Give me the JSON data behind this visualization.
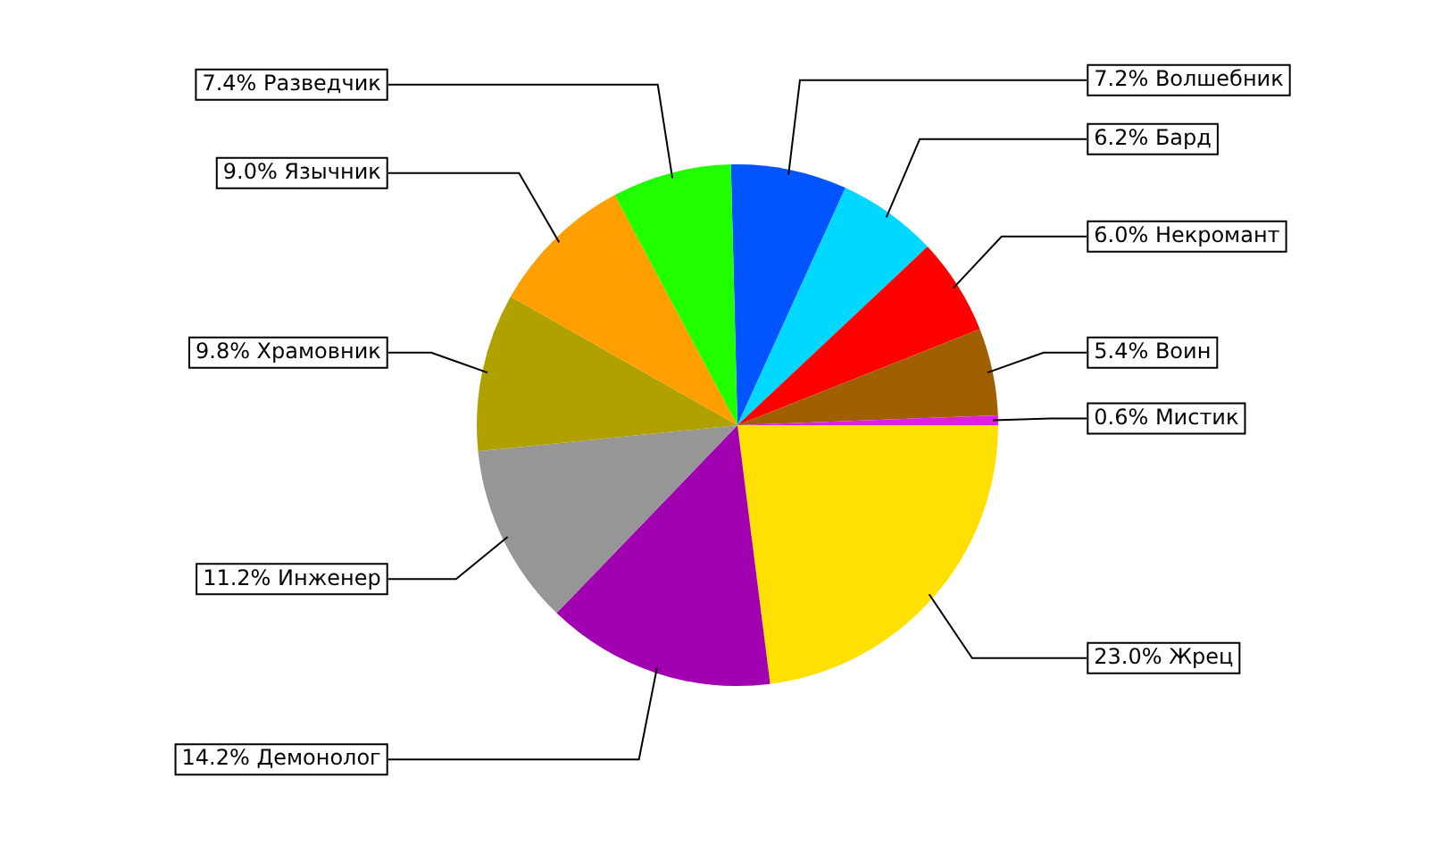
{
  "chart_data": {
    "type": "pie",
    "categories": [
      "Волшебник",
      "Бард",
      "Некромант",
      "Воин",
      "Мистик",
      "Жрец",
      "Демонолог",
      "Инженер",
      "Храмовник",
      "Язычник",
      "Разведчик"
    ],
    "values": [
      7.2,
      6.2,
      6.0,
      5.4,
      0.6,
      23.0,
      14.2,
      11.2,
      9.8,
      9.0,
      7.4
    ],
    "colors": [
      "#0055ff",
      "#00d8ff",
      "#ff0000",
      "#a06000",
      "#e020e0",
      "#ffe000",
      "#a000b0",
      "#969696",
      "#b0a000",
      "#ffa000",
      "#20ff00"
    ],
    "value_labels": [
      "7.2%",
      "6.2%",
      "6.0%",
      "5.4%",
      "0.6%",
      "23.0%",
      "14.2%",
      "11.2%",
      "9.8%",
      "9.0%",
      "7.4%"
    ],
    "legend": false
  }
}
